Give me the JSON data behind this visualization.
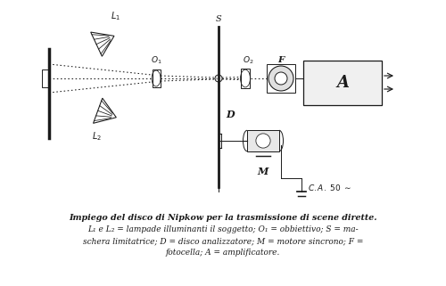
{
  "caption_line1": "Impiego del disco di Nipkow per la trasmissione di scene dirette.",
  "caption_line2": "L₁ e L₂ = lampade illuminanti il soggetto; O₁ = obbiettivo; S = ma-",
  "caption_line3": "schera limitatrice; D = disco analizzatore; M = motore sincrono; F =",
  "caption_line4": "fotocella; A = amplificatore.",
  "bg_color": "#ffffff",
  "diagram_color": "#1a1a1a",
  "fig_width": 5.0,
  "fig_height": 3.21,
  "dpi": 100
}
